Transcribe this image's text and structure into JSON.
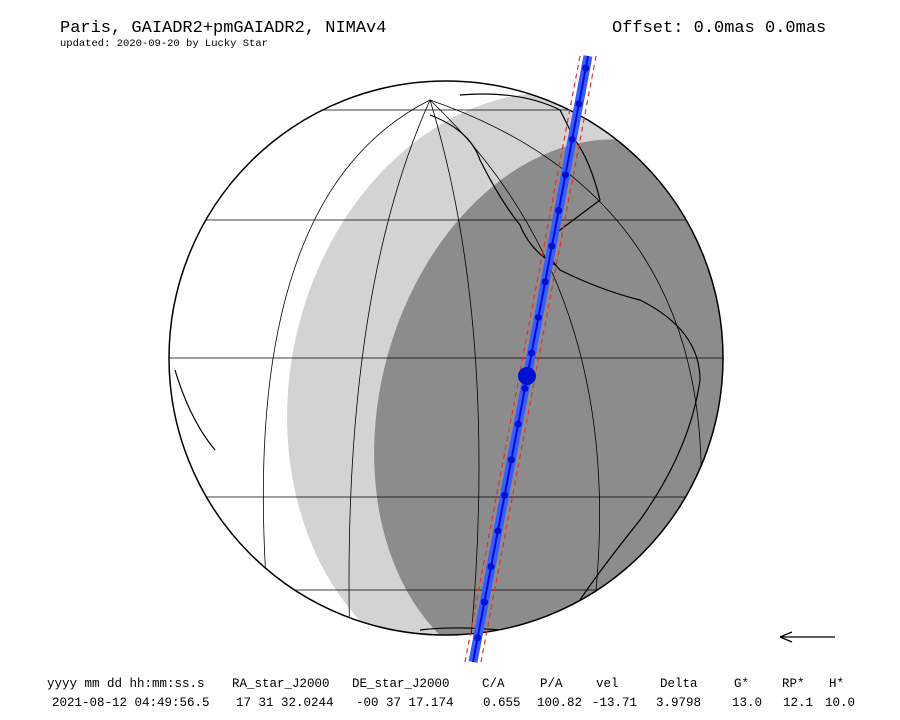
{
  "header": {
    "title": "Paris, GAIADR2+pmGAIADR2, NIMAv4",
    "updated": "updated: 2020-09-20 by Lucky Star",
    "offset": "Offset: 0.0mas 0.0mas"
  },
  "table": {
    "columns": [
      "yyyy mm dd hh:mm:ss.s",
      "RA_star_J2000",
      "DE_star_J2000",
      "C/A",
      "P/A",
      "vel",
      "Delta",
      "G*",
      "RP*",
      "H*"
    ],
    "row": [
      "2021-08-12 04:49:56.5",
      "17 31 32.0244",
      "-00 37 17.174",
      "0.655",
      "100.82",
      "-13.71",
      "3.9798",
      "13.0",
      "12.1",
      "10.0"
    ]
  }
}
